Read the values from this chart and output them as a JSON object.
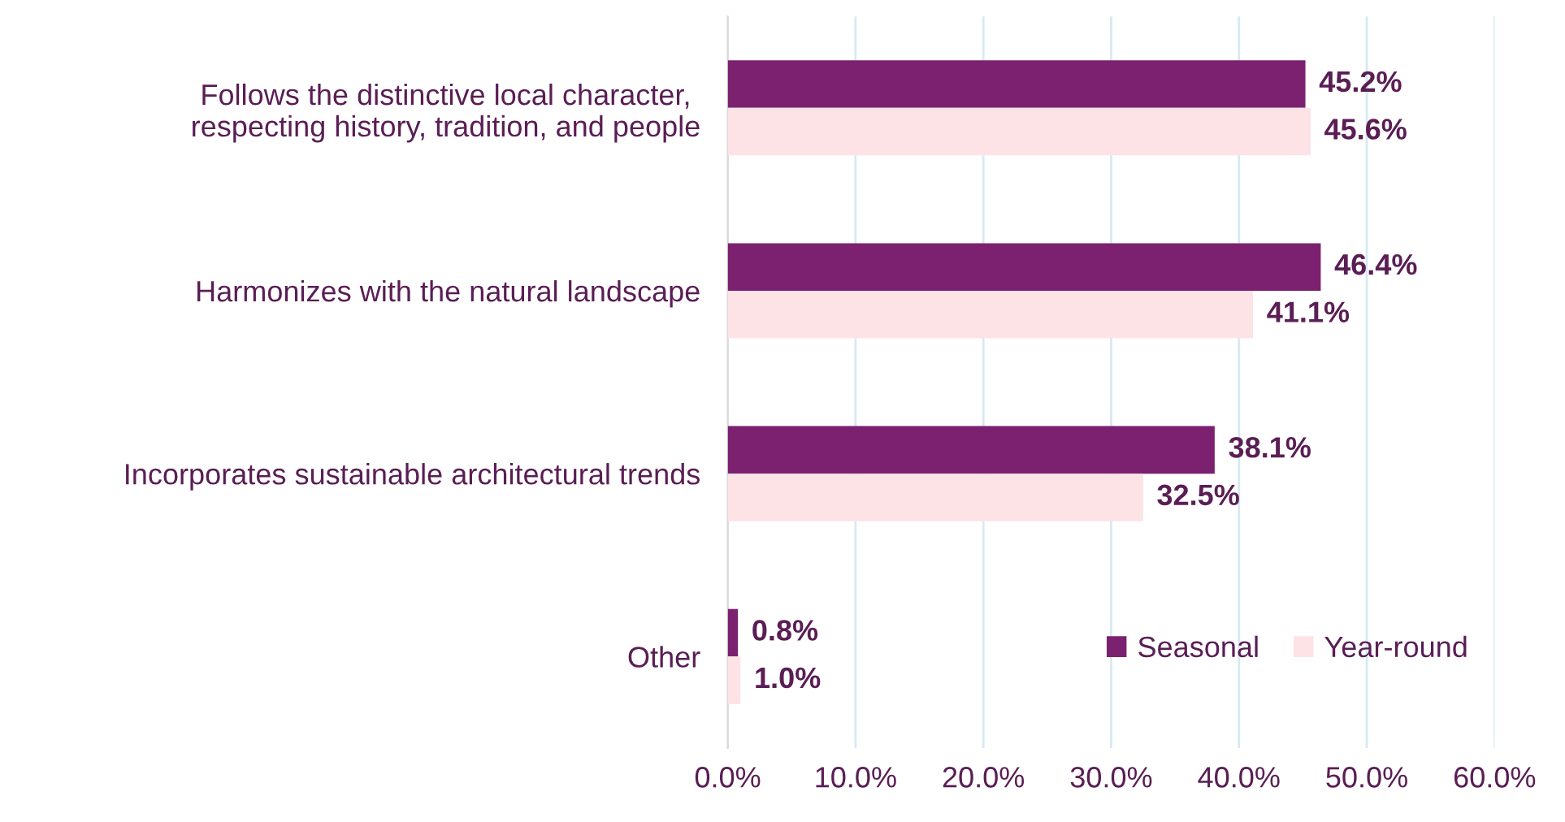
{
  "chart_data": {
    "type": "bar",
    "orientation": "horizontal",
    "categories": [
      "Follows the distinctive local character,\nrespecting history, tradition, and people",
      "Harmonizes with the natural landscape",
      "Incorporates sustainable architectural trends",
      "Other"
    ],
    "series": [
      {
        "name": "Seasonal",
        "color": "#7b2170",
        "values": [
          45.2,
          46.4,
          38.1,
          0.8
        ],
        "value_labels": [
          "45.2%",
          "46.4%",
          "38.1%",
          "0.8%"
        ]
      },
      {
        "name": "Year-round",
        "color": "#fde3e6",
        "values": [
          45.6,
          41.1,
          32.5,
          1.0
        ],
        "value_labels": [
          "45.6%",
          "41.1%",
          "32.5%",
          "1.0%"
        ]
      }
    ],
    "xlim": [
      0,
      60
    ],
    "xticks": [
      {
        "value": 0,
        "label": "0.0%"
      },
      {
        "value": 10,
        "label": "10.0%"
      },
      {
        "value": 20,
        "label": "20.0%"
      },
      {
        "value": 30,
        "label": "30.0%"
      },
      {
        "value": 40,
        "label": "40.0%"
      },
      {
        "value": 50,
        "label": "50.0%"
      },
      {
        "value": 60,
        "label": "60.0%"
      }
    ],
    "grid": "x",
    "legend": "bottom right"
  }
}
